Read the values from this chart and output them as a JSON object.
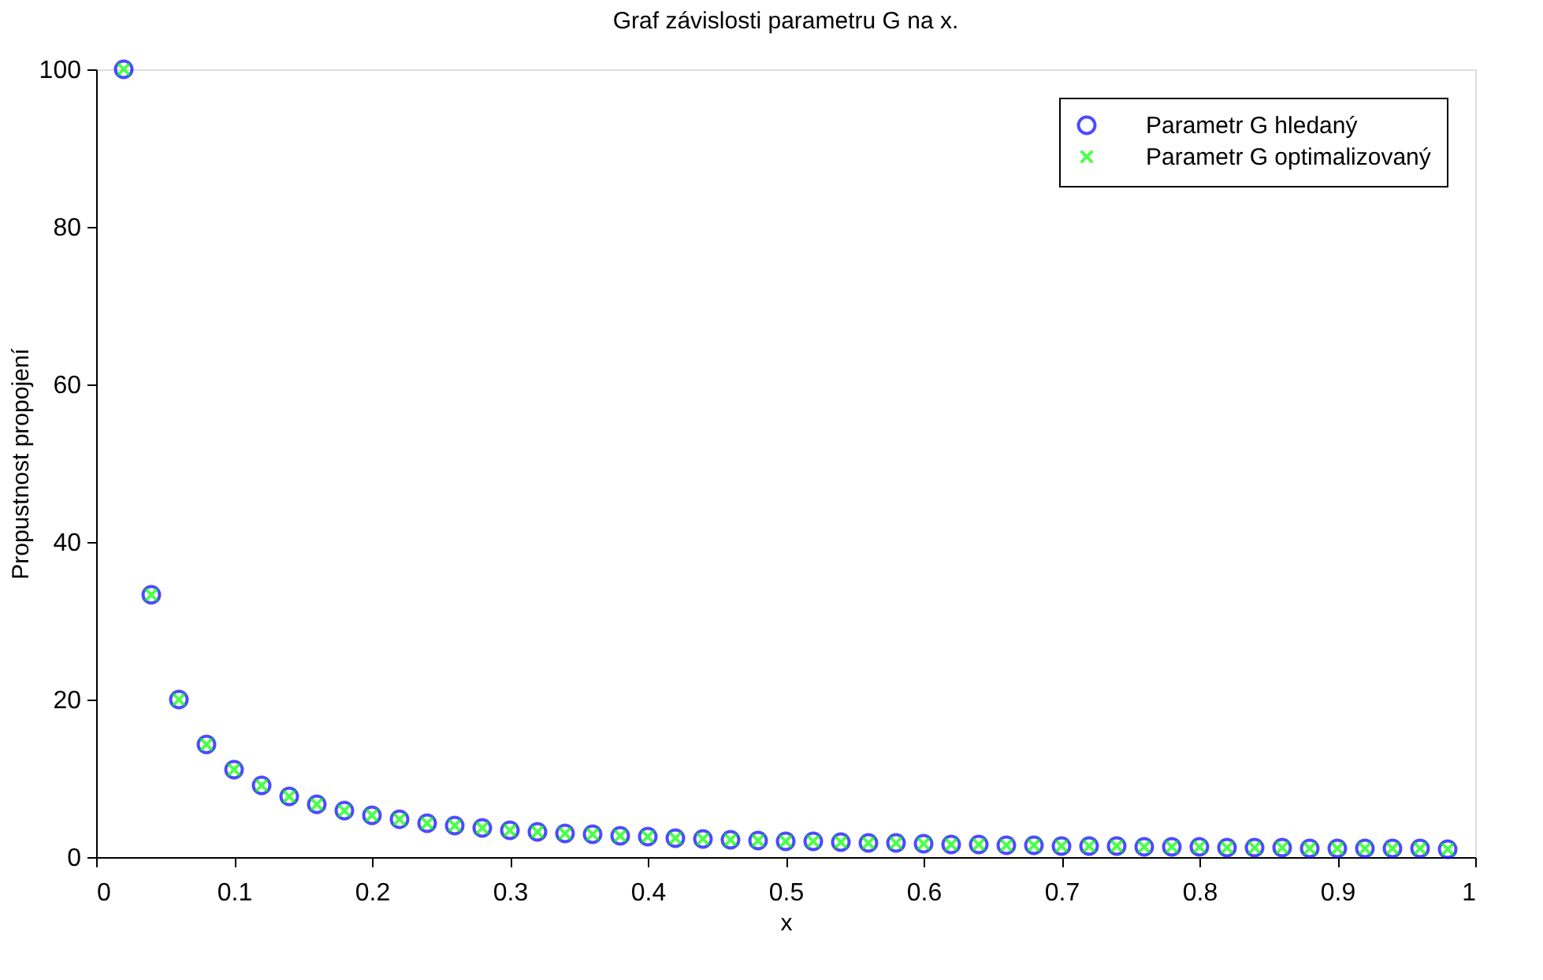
{
  "chart_data": {
    "type": "scatter",
    "title": "Graf závislosti parametru G na x.",
    "xlabel": "x",
    "ylabel": "Propustnost propojení",
    "x": [
      0.02,
      0.04,
      0.06,
      0.08,
      0.1,
      0.12,
      0.14,
      0.16,
      0.18,
      0.2,
      0.22,
      0.24,
      0.26,
      0.28,
      0.3,
      0.32,
      0.34,
      0.36,
      0.38,
      0.4,
      0.42,
      0.44,
      0.46,
      0.48,
      0.5,
      0.52,
      0.54,
      0.56,
      0.58,
      0.6,
      0.62,
      0.64,
      0.66,
      0.68,
      0.7,
      0.72,
      0.74,
      0.76,
      0.78,
      0.8,
      0.82,
      0.84,
      0.86,
      0.88,
      0.9,
      0.92,
      0.94,
      0.96,
      0.98
    ],
    "series": [
      {
        "name": "Parametr G hledaný",
        "color": "#0000ff",
        "marker": "circle",
        "values": [
          100,
          33.3,
          20,
          14.3,
          11.1,
          9.1,
          7.7,
          6.7,
          5.9,
          5.3,
          4.8,
          4.3,
          4,
          3.7,
          3.4,
          3.2,
          3,
          2.9,
          2.7,
          2.6,
          2.4,
          2.3,
          2.2,
          2.1,
          2,
          2,
          1.9,
          1.8,
          1.8,
          1.7,
          1.6,
          1.6,
          1.5,
          1.5,
          1.4,
          1.4,
          1.4,
          1.3,
          1.3,
          1.3,
          1.2,
          1.2,
          1.2,
          1.1,
          1.1,
          1.1,
          1.1,
          1.1,
          1
        ]
      },
      {
        "name": "Parametr G optimalizovaný",
        "color": "#00ff00",
        "marker": "cross",
        "values": [
          100,
          33.3,
          20,
          14.3,
          11.1,
          9.1,
          7.7,
          6.7,
          5.9,
          5.3,
          4.8,
          4.3,
          4,
          3.7,
          3.4,
          3.2,
          3,
          2.9,
          2.7,
          2.6,
          2.4,
          2.3,
          2.2,
          2.1,
          2,
          2,
          1.9,
          1.8,
          1.8,
          1.7,
          1.6,
          1.6,
          1.5,
          1.5,
          1.4,
          1.4,
          1.4,
          1.3,
          1.3,
          1.3,
          1.2,
          1.2,
          1.2,
          1.1,
          1.1,
          1.1,
          1.1,
          1.1,
          1
        ]
      }
    ],
    "xlim": [
      0,
      1
    ],
    "xticks": [
      0,
      0.1,
      0.2,
      0.3,
      0.4,
      0.5,
      0.6,
      0.7,
      0.8,
      0.9,
      1
    ],
    "ylim": [
      0,
      100
    ],
    "yticks": [
      0,
      20,
      40,
      60,
      80,
      100
    ],
    "grid": false,
    "legend": "top right"
  }
}
